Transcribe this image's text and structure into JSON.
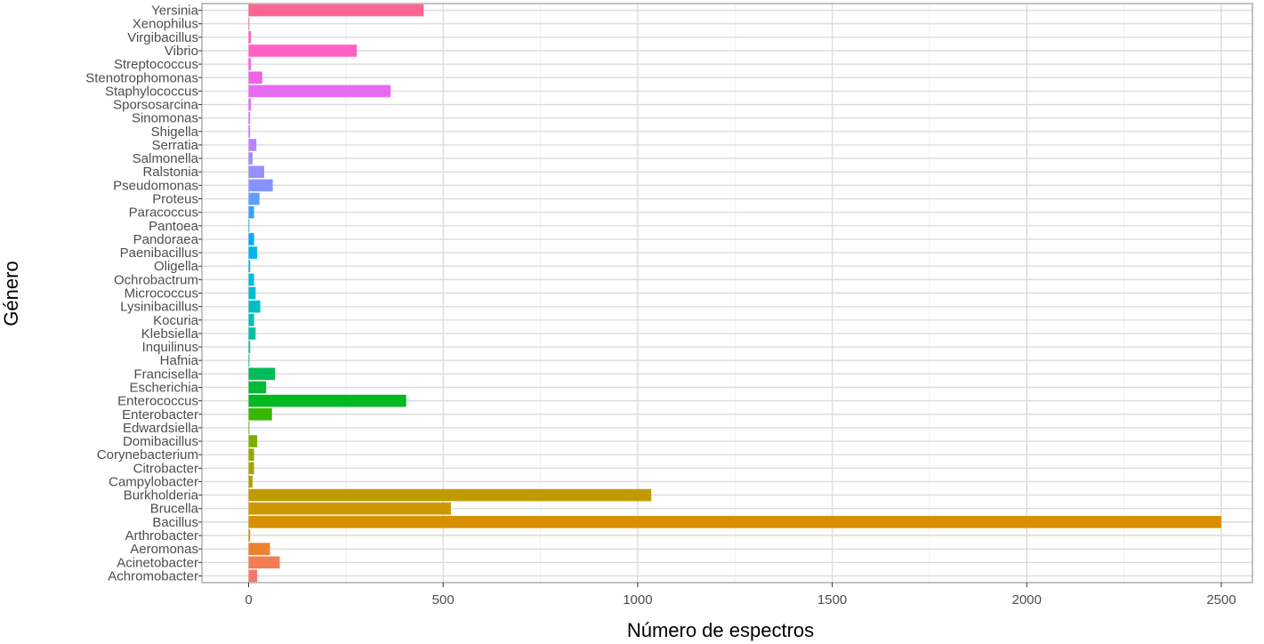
{
  "chart_data": {
    "type": "bar",
    "orientation": "horizontal",
    "xlabel": "Número de espectros",
    "ylabel": "Género",
    "xlim": [
      -120,
      2580
    ],
    "xticks": [
      0,
      500,
      1000,
      1500,
      2000,
      2500
    ],
    "grid": true,
    "legend": "none",
    "categories": [
      "Achromobacter",
      "Acinetobacter",
      "Aeromonas",
      "Arthrobacter",
      "Bacillus",
      "Brucella",
      "Burkholderia",
      "Campylobacter",
      "Citrobacter",
      "Corynebacterium",
      "Domibacillus",
      "Edwardsiella",
      "Enterobacter",
      "Enterococcus",
      "Escherichia",
      "Francisella",
      "Hafnia",
      "Inquilinus",
      "Klebsiella",
      "Kocuria",
      "Lysinibacillus",
      "Micrococcus",
      "Ochrobactrum",
      "Oligella",
      "Paenibacillus",
      "Pandoraea",
      "Pantoea",
      "Paracoccus",
      "Proteus",
      "Pseudomonas",
      "Ralstonia",
      "Salmonella",
      "Serratia",
      "Shigella",
      "Sinomonas",
      "Sporsosarcina",
      "Staphylococcus",
      "Stenotrophomonas",
      "Streptococcus",
      "Vibrio",
      "Virgibacillus",
      "Xenophilus",
      "Yersinia"
    ],
    "values": [
      22,
      80,
      55,
      4,
      2500,
      520,
      1035,
      10,
      14,
      14,
      22,
      2,
      60,
      405,
      45,
      68,
      2,
      4,
      18,
      14,
      30,
      18,
      14,
      4,
      22,
      14,
      2,
      14,
      28,
      62,
      40,
      10,
      20,
      4,
      4,
      6,
      365,
      35,
      6,
      278,
      6,
      2,
      450
    ],
    "colors": [
      "#f8766d",
      "#f27d52",
      "#ea8331",
      "#e08b00",
      "#d89000",
      "#cd9600",
      "#c09b00",
      "#b2a000",
      "#a3a500",
      "#93aa00",
      "#7cae00",
      "#5fb300",
      "#39b600",
      "#00b81f",
      "#00ba38",
      "#00bc59",
      "#00bf7d",
      "#00c094",
      "#00c1a3",
      "#00c1b2",
      "#00bfc4",
      "#00bdd0",
      "#00bcd8",
      "#00b9e3",
      "#00b4ef",
      "#00acfc",
      "#00a5ff",
      "#35a2ff",
      "#619cff",
      "#8794ff",
      "#9590ff",
      "#a58aff",
      "#b983ff",
      "#c77cff",
      "#d576fe",
      "#e36efb",
      "#e76bf3",
      "#f063e5",
      "#f763e0",
      "#ff61c3",
      "#ff62bc",
      "#fe6198",
      "#ff6492"
    ]
  }
}
